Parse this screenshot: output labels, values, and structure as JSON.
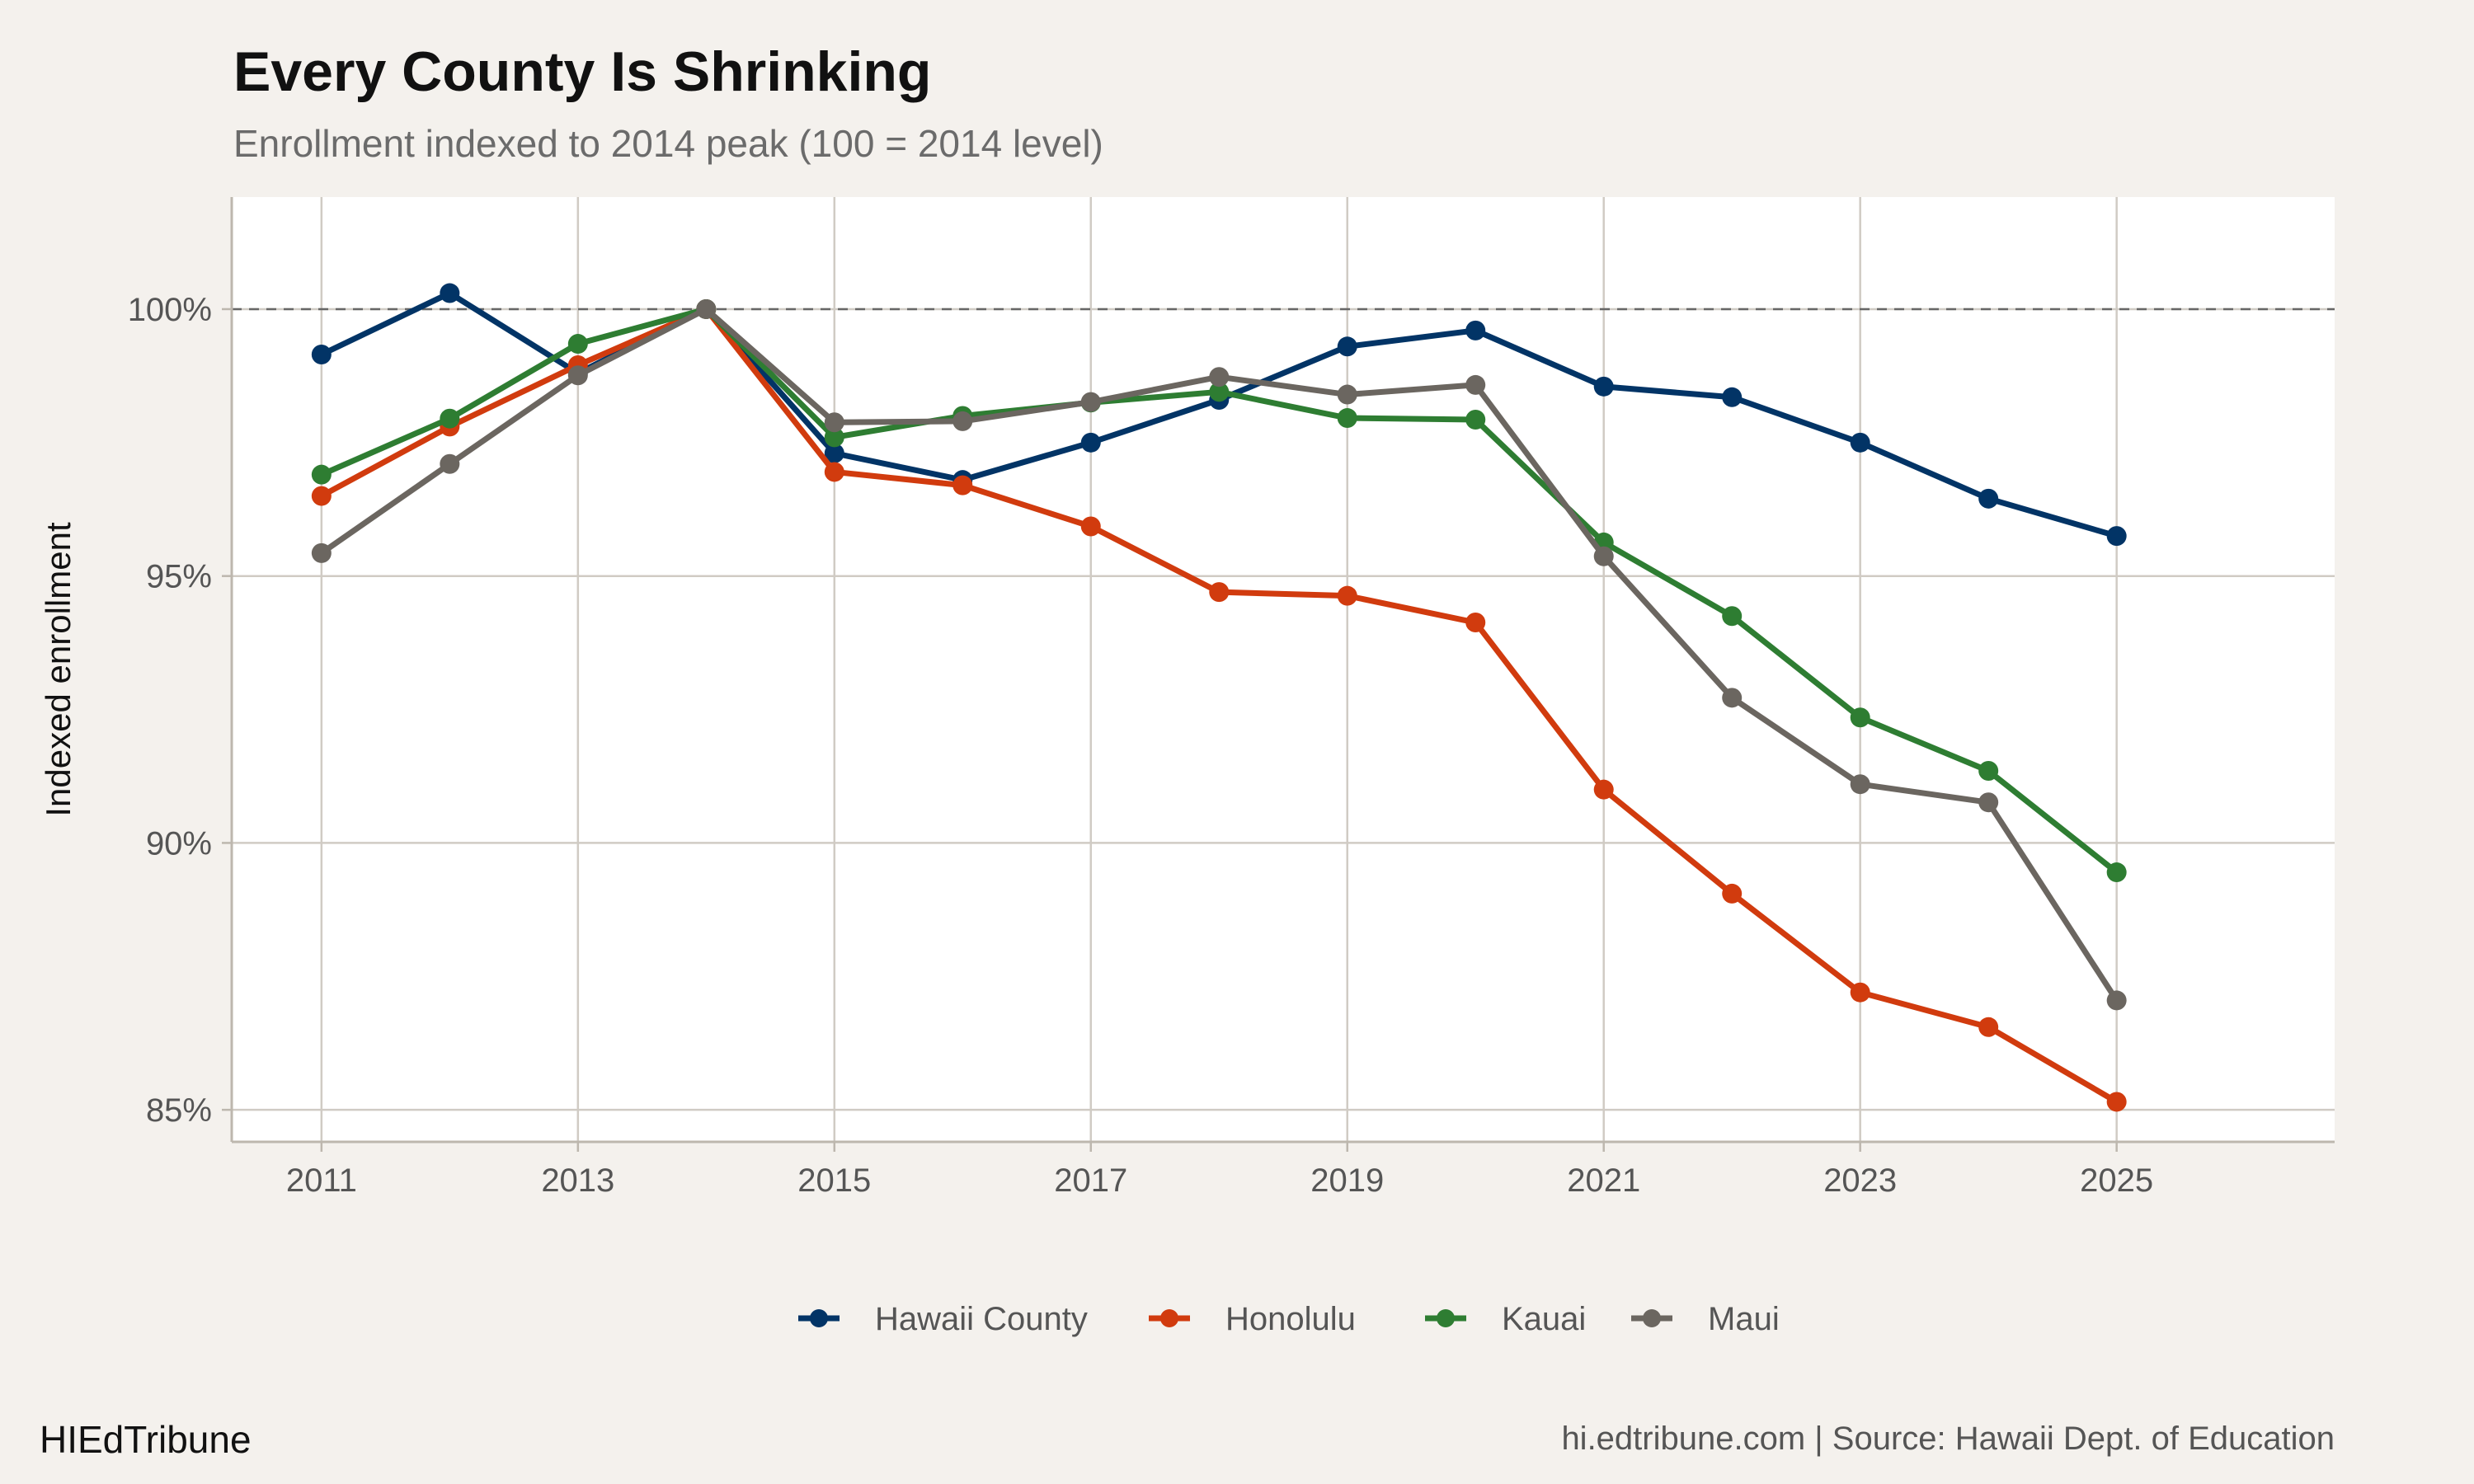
{
  "chart_data": {
    "type": "line",
    "title": "Every County Is Shrinking",
    "subtitle": "Enrollment indexed to 2014 peak (100 = 2014 level)",
    "xlabel": "",
    "ylabel": "Indexed enrollment",
    "x": [
      2011,
      2012,
      2013,
      2014,
      2015,
      2016,
      2017,
      2018,
      2019,
      2020,
      2021,
      2022,
      2023,
      2024,
      2025
    ],
    "x_ticks": [
      "2011",
      "2013",
      "2015",
      "2017",
      "2019",
      "2021",
      "2023",
      "2025"
    ],
    "y_ticks": [
      "85%",
      "90%",
      "95%",
      "100%"
    ],
    "xlim": [
      2010.3,
      2026.7
    ],
    "ylim": [
      84.4,
      102.1
    ],
    "reference_line": 100,
    "grid": true,
    "legend_position": "bottom",
    "series": [
      {
        "name": "Hawaii County",
        "color": "#023466",
        "values": [
          99.15,
          100.3,
          98.8,
          100,
          97.3,
          96.8,
          97.5,
          98.3,
          99.3,
          99.6,
          98.55,
          98.35,
          97.5,
          96.45,
          95.75
        ]
      },
      {
        "name": "Honolulu",
        "color": "#d13b0e",
        "values": [
          96.5,
          97.8,
          98.95,
          100,
          96.95,
          96.7,
          95.93,
          94.7,
          94.63,
          94.13,
          91.0,
          89.05,
          87.2,
          86.55,
          85.15
        ]
      },
      {
        "name": "Kauai",
        "color": "#2e7d32",
        "values": [
          96.9,
          97.95,
          99.35,
          100,
          97.6,
          98.0,
          98.25,
          98.45,
          97.96,
          97.93,
          95.63,
          94.25,
          92.35,
          91.35,
          89.45
        ]
      },
      {
        "name": "Maui",
        "color": "#6b6660",
        "values": [
          95.43,
          97.1,
          98.76,
          100,
          97.88,
          97.9,
          98.26,
          98.73,
          98.4,
          98.58,
          95.37,
          92.72,
          91.1,
          90.76,
          87.05
        ]
      }
    ]
  },
  "footer": {
    "brand": "HIEdTribune",
    "source": "hi.edtribune.com | Source: Hawaii Dept. of Education"
  }
}
